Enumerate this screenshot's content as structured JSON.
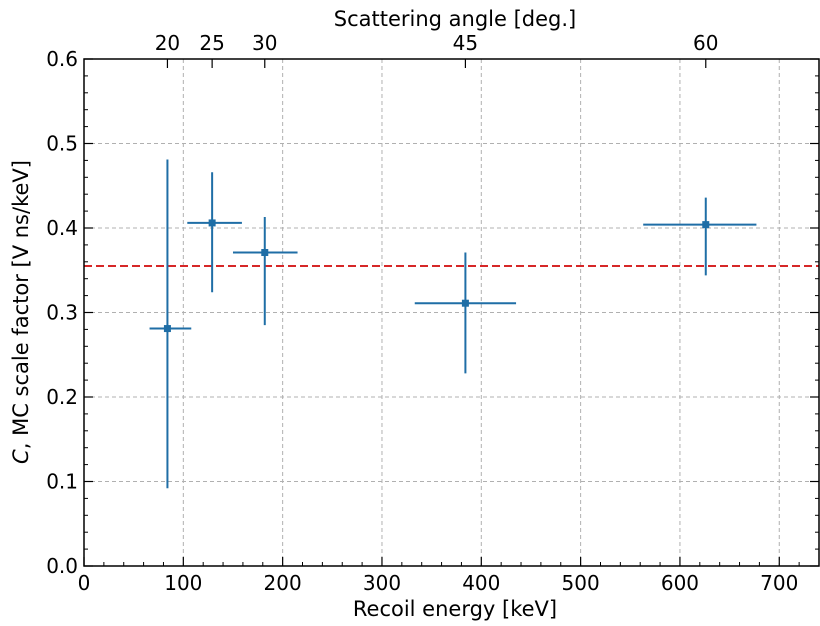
{
  "chart_data": {
    "type": "scatter",
    "xlabel": "Recoil energy [keV]",
    "ylabel_italic": "C",
    "ylabel_rest": ", MC scale factor [V ns/keV]",
    "top_xlabel": "Scattering angle [deg.]",
    "xlim": [
      0,
      740
    ],
    "ylim": [
      0.0,
      0.6
    ],
    "x_ticks": [
      0,
      100,
      200,
      300,
      400,
      500,
      600,
      700
    ],
    "x_tick_labels": [
      "0",
      "100",
      "200",
      "300",
      "400",
      "500",
      "600",
      "700"
    ],
    "y_ticks": [
      0.0,
      0.1,
      0.2,
      0.3,
      0.4,
      0.5,
      0.6
    ],
    "y_tick_labels": [
      "0.0",
      "0.1",
      "0.2",
      "0.3",
      "0.4",
      "0.5",
      "0.6"
    ],
    "top_ticks": [
      {
        "energy": 84,
        "label": "20"
      },
      {
        "energy": 129,
        "label": "25"
      },
      {
        "energy": 182,
        "label": "30"
      },
      {
        "energy": 384,
        "label": "45"
      },
      {
        "energy": 626,
        "label": "60"
      }
    ],
    "grid": true,
    "points": [
      {
        "x": 84,
        "y": 0.281,
        "xerr": [
          66,
          108
        ],
        "yerr": [
          0.092,
          0.481
        ]
      },
      {
        "x": 129,
        "y": 0.406,
        "xerr": [
          104,
          159
        ],
        "yerr": [
          0.324,
          0.466
        ]
      },
      {
        "x": 182,
        "y": 0.371,
        "xerr": [
          150,
          215
        ],
        "yerr": [
          0.285,
          0.413
        ]
      },
      {
        "x": 384,
        "y": 0.311,
        "xerr": [
          333,
          435
        ],
        "yerr": [
          0.228,
          0.371
        ]
      },
      {
        "x": 626,
        "y": 0.404,
        "xerr": [
          563,
          677
        ],
        "yerr": [
          0.344,
          0.436
        ]
      }
    ],
    "reference_line": {
      "y": 0.355,
      "style": "dashed",
      "color": "#d62728"
    },
    "series_color": "#1f6ea6"
  }
}
